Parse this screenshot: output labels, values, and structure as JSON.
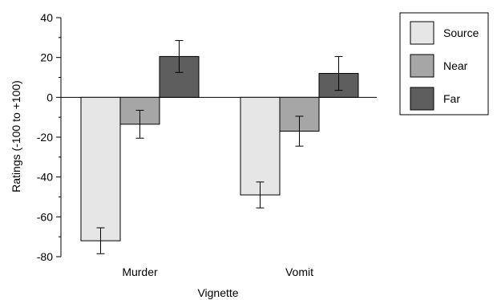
{
  "chart_data": {
    "type": "bar",
    "title": "",
    "xlabel": "Vignette",
    "ylabel": "Ratings (-100 to +100)",
    "ylim": [
      -80,
      40
    ],
    "yticks": [
      -80,
      -60,
      -40,
      -20,
      0,
      20,
      40
    ],
    "categories": [
      "Murder",
      "Vomit"
    ],
    "series": [
      {
        "name": "Source",
        "color": "#e6e6e6",
        "values": [
          -72,
          -49
        ],
        "errors": [
          6.5,
          6.5
        ]
      },
      {
        "name": "Near",
        "color": "#a6a6a6",
        "values": [
          -13.5,
          -17
        ],
        "errors": [
          7,
          7.5
        ]
      },
      {
        "name": "Far",
        "color": "#5e5e5e",
        "values": [
          20.5,
          12
        ],
        "errors": [
          8,
          8.5
        ]
      }
    ],
    "legend_position": "top-right",
    "grid": false
  }
}
